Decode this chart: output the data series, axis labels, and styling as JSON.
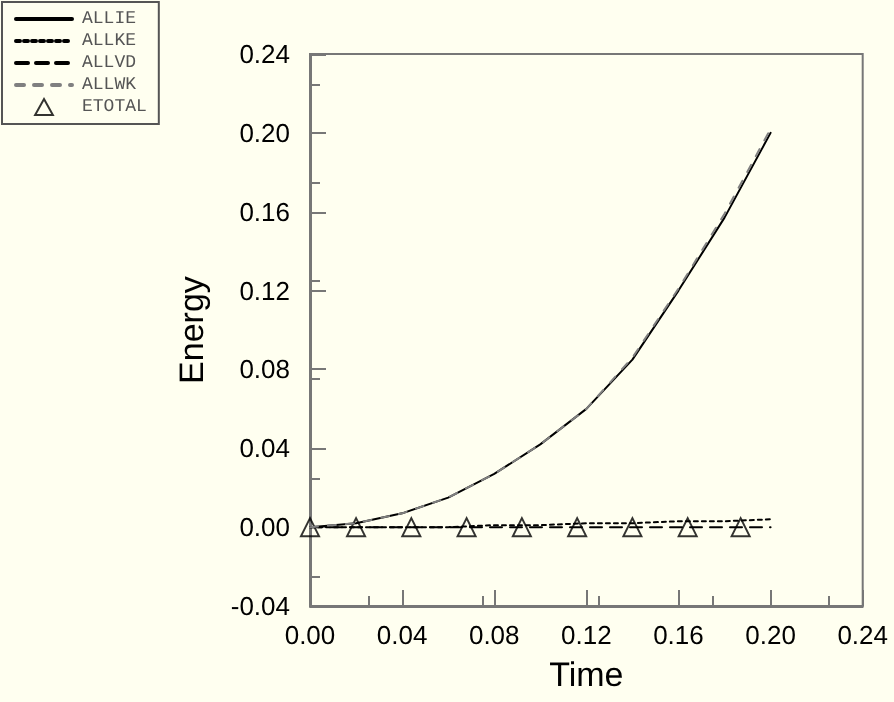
{
  "chart_data": {
    "type": "line",
    "xlabel": "Time",
    "ylabel": "Energy",
    "xlim": [
      0,
      0.24
    ],
    "xticks": [
      {
        "value": 0,
        "label": "0.00"
      },
      {
        "value": 0.04,
        "label": "0.04"
      },
      {
        "value": 0.08,
        "label": "0.08"
      },
      {
        "value": 0.12,
        "label": "0.12"
      },
      {
        "value": 0.16,
        "label": "0.16"
      },
      {
        "value": 0.2,
        "label": "0.20"
      },
      {
        "value": 0.24,
        "label": "0.24"
      }
    ],
    "ylim": [
      -0.04,
      0.24
    ],
    "yticks": [
      {
        "value": -0.04,
        "label": "-0.04"
      },
      {
        "value": 0,
        "label": "0.00"
      },
      {
        "value": 0.04,
        "label": "0.04"
      },
      {
        "value": 0.08,
        "label": "0.08"
      },
      {
        "value": 0.12,
        "label": "0.12"
      },
      {
        "value": 0.16,
        "label": "0.16"
      },
      {
        "value": 0.2,
        "label": "0.20"
      },
      {
        "value": 0.24,
        "label": "0.24"
      }
    ],
    "grid": false,
    "legend": "top left",
    "marker": "none",
    "x": [
      0,
      0.02,
      0.04,
      0.06,
      0.08,
      0.1,
      0.12,
      0.14,
      0.16,
      0.18,
      0.2
    ],
    "series": [
      {
        "name": "ALLIE",
        "color": "#000000",
        "line_style": "solid",
        "values": [
          0,
          0.002,
          0.007,
          0.015,
          0.027,
          0.042,
          0.06,
          0.085,
          0.12,
          0.157,
          0.2
        ]
      },
      {
        "name": "ALLKE",
        "color": "#000000",
        "line_style": "dotted",
        "values": [
          0,
          0,
          0,
          0,
          0.001,
          0.001,
          0.002,
          0.002,
          0.003,
          0.003,
          0.004
        ]
      },
      {
        "name": "ALLVD",
        "color": "#000000",
        "line_style": "dashed",
        "values": [
          0,
          0,
          0,
          0,
          0,
          0,
          0,
          0,
          0,
          0,
          0
        ]
      },
      {
        "name": "ALLWK",
        "color": "#808080",
        "line_style": "dashed",
        "values": [
          0,
          0.002,
          0.007,
          0.015,
          0.027,
          0.042,
          0.06,
          0.086,
          0.121,
          0.159,
          0.202
        ]
      },
      {
        "name": "ETOTAL",
        "type": "scatter",
        "marker": "triangle",
        "color": "#000000",
        "x": [
          0,
          0.02,
          0.044,
          0.068,
          0.092,
          0.116,
          0.14,
          0.164,
          0.187
        ],
        "values": [
          0,
          0,
          0,
          0,
          0,
          0,
          0,
          0,
          0
        ]
      }
    ]
  }
}
